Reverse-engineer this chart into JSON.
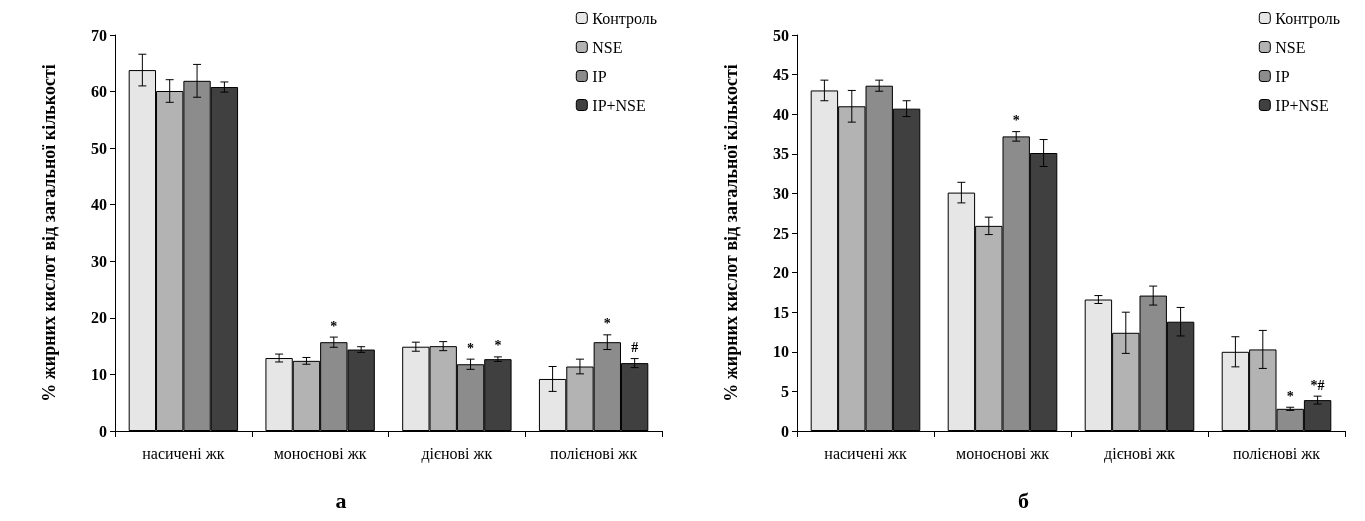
{
  "chart_data": [
    {
      "type": "bar",
      "title": "а",
      "ylabel": "% жирних кислот від загальної кількості",
      "categories": [
        "насичені жк",
        "моноєнові жк",
        "дієнові жк",
        "полієнові жк"
      ],
      "ylim": [
        0,
        70
      ],
      "yticks": [
        0,
        10,
        20,
        30,
        40,
        50,
        60,
        70
      ],
      "grid": false,
      "legend": "top right",
      "series": [
        {
          "name": "Контроль",
          "color": "#e6e6e6",
          "values": [
            63.8,
            12.9,
            14.9,
            9.2
          ],
          "errors": [
            2.8,
            0.7,
            0.8,
            2.2
          ]
        },
        {
          "name": "NSE",
          "color": "#b3b3b3",
          "values": [
            60.1,
            12.4,
            15.0,
            11.4
          ],
          "errors": [
            2.0,
            0.6,
            0.8,
            1.3
          ]
        },
        {
          "name": "IP",
          "color": "#8c8c8c",
          "values": [
            61.9,
            15.7,
            11.8,
            15.7
          ],
          "errors": [
            2.9,
            0.9,
            0.9,
            1.3
          ],
          "value_labels": [
            null,
            "*",
            "*",
            "*"
          ]
        },
        {
          "name": "IP+NSE",
          "color": "#404040",
          "values": [
            60.8,
            14.4,
            12.7,
            12.0
          ],
          "errors": [
            0.9,
            0.5,
            0.4,
            0.8
          ],
          "value_labels": [
            null,
            null,
            "*",
            "#"
          ]
        }
      ]
    },
    {
      "type": "bar",
      "title": "б",
      "ylabel": "% жирних кислот від загальної кількості",
      "categories": [
        "насичені жк",
        "моноєнові жк",
        "дієнові жк",
        "полієнові жк"
      ],
      "ylim": [
        0,
        50
      ],
      "yticks": [
        0,
        5,
        10,
        15,
        20,
        25,
        30,
        35,
        40,
        45,
        50
      ],
      "grid": false,
      "legend": "top right",
      "series": [
        {
          "name": "Контроль",
          "color": "#e6e6e6",
          "values": [
            43.0,
            30.1,
            16.6,
            10.0
          ],
          "errors": [
            1.3,
            1.3,
            0.5,
            1.9
          ]
        },
        {
          "name": "NSE",
          "color": "#b3b3b3",
          "values": [
            41.0,
            25.9,
            12.4,
            10.3
          ],
          "errors": [
            2.0,
            1.1,
            2.6,
            2.4
          ]
        },
        {
          "name": "IP",
          "color": "#8c8c8c",
          "values": [
            43.6,
            37.2,
            17.1,
            2.8
          ],
          "errors": [
            0.7,
            0.6,
            1.2,
            0.2
          ],
          "value_labels": [
            null,
            "*",
            null,
            "*"
          ]
        },
        {
          "name": "IP+NSE",
          "color": "#404040",
          "values": [
            40.7,
            35.1,
            13.8,
            3.9
          ],
          "errors": [
            1.0,
            1.7,
            1.8,
            0.5
          ],
          "value_labels": [
            null,
            null,
            null,
            "*#"
          ]
        }
      ]
    }
  ]
}
